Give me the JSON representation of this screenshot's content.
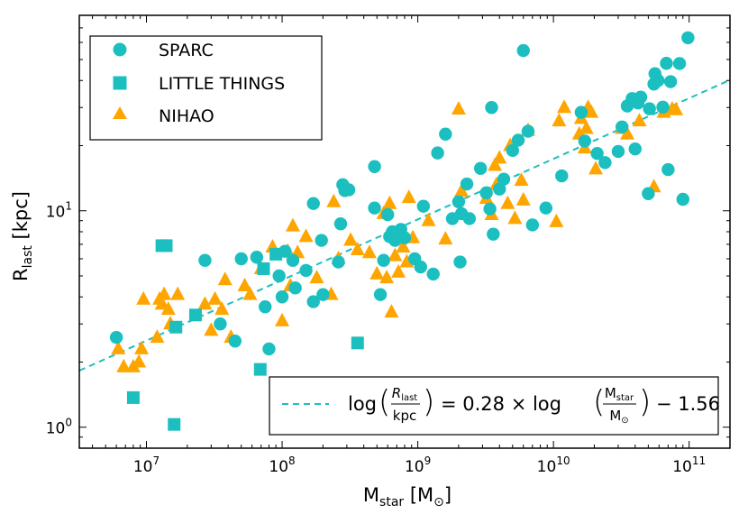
{
  "chart_data": {
    "type": "scatter",
    "title": "",
    "xscale": "log",
    "yscale": "log",
    "xlim": [
      3200000.0,
      200000000000.0
    ],
    "ylim": [
      0.8,
      80
    ],
    "xlabel": {
      "main": "M",
      "sub": "star",
      "unit_open": " [M",
      "unit_sub": "⊙",
      "unit_close": "]"
    },
    "ylabel": {
      "main": "R",
      "sub": "last",
      "unit": " [kpc]"
    },
    "x_tick_labels": [
      {
        "value": 10000000.0,
        "base": "10",
        "exp": "7"
      },
      {
        "value": 100000000.0,
        "base": "10",
        "exp": "8"
      },
      {
        "value": 1000000000.0,
        "base": "10",
        "exp": "9"
      },
      {
        "value": 10000000000.0,
        "base": "10",
        "exp": "10"
      },
      {
        "value": 100000000000.0,
        "base": "10",
        "exp": "11"
      }
    ],
    "y_tick_labels": [
      {
        "value": 1,
        "base": "10",
        "exp": "0"
      },
      {
        "value": 10,
        "base": "10",
        "exp": "1"
      }
    ],
    "colors": {
      "sparc": "#1bbfbf",
      "little_things": "#1bbfbf",
      "nihao": "#ffa500",
      "fit": "#1bbfbf"
    },
    "legend": {
      "placement": "top-left",
      "entries": [
        {
          "label": "SPARC",
          "marker": "circle"
        },
        {
          "label": "LITTLE THINGS",
          "marker": "square"
        },
        {
          "label": "NIHAO",
          "marker": "triangle"
        }
      ]
    },
    "fit": {
      "placement": "bottom-right",
      "slope": 0.28,
      "intercept": -1.56,
      "style": "dashed",
      "label": {
        "log": "log",
        "r_num": "R",
        "r_num_sub": "last",
        "r_den": "kpc",
        "eq": "= 0.28 × log",
        "m_num": "M",
        "m_num_sub": "star",
        "m_den": "M",
        "m_den_sub": "⊙",
        "tail": "− 1.56"
      }
    },
    "series": [
      {
        "name": "SPARC",
        "marker": "circle",
        "points": [
          [
            6000000.0,
            2.6
          ],
          [
            35000000.0,
            3.0
          ],
          [
            27000000.0,
            5.9
          ],
          [
            50000000.0,
            6.0
          ],
          [
            45000000.0,
            2.5
          ],
          [
            65000000.0,
            6.1
          ],
          [
            75000000.0,
            3.6
          ],
          [
            80000000.0,
            2.3
          ],
          [
            95000000.0,
            5.0
          ],
          [
            100000000.0,
            4.0
          ],
          [
            105000000.0,
            6.5
          ],
          [
            120000000.0,
            5.9
          ],
          [
            125000000.0,
            4.4
          ],
          [
            150000000.0,
            5.3
          ],
          [
            170000000.0,
            10.8
          ],
          [
            170000000.0,
            3.8
          ],
          [
            195000000.0,
            7.3
          ],
          [
            200000000.0,
            4.1
          ],
          [
            260000000.0,
            5.8
          ],
          [
            270000000.0,
            8.7
          ],
          [
            280000000.0,
            13.2
          ],
          [
            290000000.0,
            12.4
          ],
          [
            310000000.0,
            12.5
          ],
          [
            480000000.0,
            10.3
          ],
          [
            480000000.0,
            16.0
          ],
          [
            530000000.0,
            4.1
          ],
          [
            560000000.0,
            5.9
          ],
          [
            600000000.0,
            9.6
          ],
          [
            620000000.0,
            7.6
          ],
          [
            650000000.0,
            8.0
          ],
          [
            680000000.0,
            7.3
          ],
          [
            750000000.0,
            8.2
          ],
          [
            800000000.0,
            7.5
          ],
          [
            950000000.0,
            6.0
          ],
          [
            1050000000.0,
            5.5
          ],
          [
            1100000000.0,
            10.5
          ],
          [
            1300000000.0,
            5.1
          ],
          [
            1400000000.0,
            18.5
          ],
          [
            1600000000.0,
            22.6
          ],
          [
            1800000000.0,
            9.2
          ],
          [
            2000000000.0,
            11.0
          ],
          [
            2050000000.0,
            5.8
          ],
          [
            2100000000.0,
            9.7
          ],
          [
            2300000000.0,
            13.3
          ],
          [
            2400000000.0,
            9.2
          ],
          [
            2900000000.0,
            15.7
          ],
          [
            3200000000.0,
            12.1
          ],
          [
            3400000000.0,
            10.2
          ],
          [
            3500000000.0,
            30.0
          ],
          [
            3600000000.0,
            7.8
          ],
          [
            4000000000.0,
            12.6
          ],
          [
            4300000000.0,
            14.0
          ],
          [
            5000000000.0,
            19.0
          ],
          [
            5500000000.0,
            21.2
          ],
          [
            6000000000.0,
            55.0
          ],
          [
            6500000000.0,
            23.3
          ],
          [
            7000000000.0,
            8.6
          ],
          [
            8800000000.0,
            10.3
          ],
          [
            11500000000.0,
            14.5
          ],
          [
            16000000000.0,
            28.5
          ],
          [
            17000000000.0,
            21.0
          ],
          [
            21000000000.0,
            18.4
          ],
          [
            24000000000.0,
            16.7
          ],
          [
            30000000000.0,
            18.8
          ],
          [
            32000000000.0,
            24.4
          ],
          [
            35000000000.0,
            30.5
          ],
          [
            38000000000.0,
            33.0
          ],
          [
            40000000000.0,
            19.3
          ],
          [
            42000000000.0,
            31.5
          ],
          [
            44000000000.0,
            33.5
          ],
          [
            50000000000.0,
            12.0
          ],
          [
            51000000000.0,
            29.6
          ],
          [
            55000000000.0,
            38.5
          ],
          [
            56000000000.0,
            43.0
          ],
          [
            59000000000.0,
            40.0
          ],
          [
            64000000000.0,
            30.1
          ],
          [
            68000000000.0,
            48.0
          ],
          [
            70000000000.0,
            15.5
          ],
          [
            73000000000.0,
            39.5
          ],
          [
            85000000000.0,
            47.9
          ],
          [
            90000000000.0,
            11.3
          ],
          [
            98000000000.0,
            63.0
          ]
        ]
      },
      {
        "name": "LITTLE THINGS",
        "marker": "square",
        "points": [
          [
            8000000.0,
            1.37
          ],
          [
            13000000.0,
            6.9
          ],
          [
            14000000.0,
            6.9
          ],
          [
            16000000.0,
            1.03
          ],
          [
            16500000.0,
            2.9
          ],
          [
            23000000.0,
            3.3
          ],
          [
            69000000.0,
            1.85
          ],
          [
            73000000.0,
            5.4
          ],
          [
            90000000.0,
            6.3
          ],
          [
            360000000.0,
            2.45
          ]
        ]
      },
      {
        "name": "NIHAO",
        "marker": "triangle",
        "points": [
          [
            6200000.0,
            2.3
          ],
          [
            6800000.0,
            1.9
          ],
          [
            8000000.0,
            1.9
          ],
          [
            8800000.0,
            2.0
          ],
          [
            9200000.0,
            2.3
          ],
          [
            9500000.0,
            3.9
          ],
          [
            12000000.0,
            2.6
          ],
          [
            12500000.0,
            3.9
          ],
          [
            13000000.0,
            3.7
          ],
          [
            13500000.0,
            4.1
          ],
          [
            14500000.0,
            3.5
          ],
          [
            15000000.0,
            3.0
          ],
          [
            17000000.0,
            4.1
          ],
          [
            27000000.0,
            3.7
          ],
          [
            30000000.0,
            2.8
          ],
          [
            32000000.0,
            3.9
          ],
          [
            36000000.0,
            3.5
          ],
          [
            38000000.0,
            4.8
          ],
          [
            42000000.0,
            2.6
          ],
          [
            53000000.0,
            4.5
          ],
          [
            58000000.0,
            4.1
          ],
          [
            70000000.0,
            5.4
          ],
          [
            85000000.0,
            6.8
          ],
          [
            100000000.0,
            3.1
          ],
          [
            110000000.0,
            6.5
          ],
          [
            115000000.0,
            4.5
          ],
          [
            120000000.0,
            8.5
          ],
          [
            130000000.0,
            6.4
          ],
          [
            150000000.0,
            7.6
          ],
          [
            180000000.0,
            4.9
          ],
          [
            230000000.0,
            4.1
          ],
          [
            240000000.0,
            11.0
          ],
          [
            260000000.0,
            6.0
          ],
          [
            320000000.0,
            7.3
          ],
          [
            360000000.0,
            6.6
          ],
          [
            440000000.0,
            6.4
          ],
          [
            500000000.0,
            5.1
          ],
          [
            560000000.0,
            9.7
          ],
          [
            590000000.0,
            4.9
          ],
          [
            620000000.0,
            10.8
          ],
          [
            640000000.0,
            3.4
          ],
          [
            680000000.0,
            6.2
          ],
          [
            720000000.0,
            5.2
          ],
          [
            780000000.0,
            6.8
          ],
          [
            830000000.0,
            5.8
          ],
          [
            860000000.0,
            11.5
          ],
          [
            920000000.0,
            7.5
          ],
          [
            1200000000.0,
            9.0
          ],
          [
            1600000000.0,
            7.4
          ],
          [
            2000000000.0,
            29.5
          ],
          [
            2100000000.0,
            12.3
          ],
          [
            3200000000.0,
            11.4
          ],
          [
            3500000000.0,
            9.6
          ],
          [
            3700000000.0,
            16.2
          ],
          [
            3800000000.0,
            13.2
          ],
          [
            4000000000.0,
            17.5
          ],
          [
            4600000000.0,
            10.8
          ],
          [
            4800000000.0,
            20.0
          ],
          [
            5200000000.0,
            9.2
          ],
          [
            5800000000.0,
            13.8
          ],
          [
            6000000000.0,
            11.2
          ],
          [
            6500000000.0,
            23.5
          ],
          [
            10500000000.0,
            8.9
          ],
          [
            11000000000.0,
            26.0
          ],
          [
            12000000000.0,
            30.0
          ],
          [
            15500000000.0,
            22.6
          ],
          [
            16000000000.0,
            26.7
          ],
          [
            17000000000.0,
            19.5
          ],
          [
            17500000000.0,
            24.0
          ],
          [
            18000000000.0,
            30.0
          ],
          [
            19000000000.0,
            28.5
          ],
          [
            20500000000.0,
            15.6
          ],
          [
            32000000000.0,
            24.0
          ],
          [
            35000000000.0,
            22.6
          ],
          [
            43000000000.0,
            26.0
          ],
          [
            55000000000.0,
            12.9
          ],
          [
            65000000000.0,
            28.5
          ],
          [
            75000000000.0,
            29.5
          ],
          [
            80000000000.0,
            29.3
          ]
        ]
      }
    ]
  }
}
